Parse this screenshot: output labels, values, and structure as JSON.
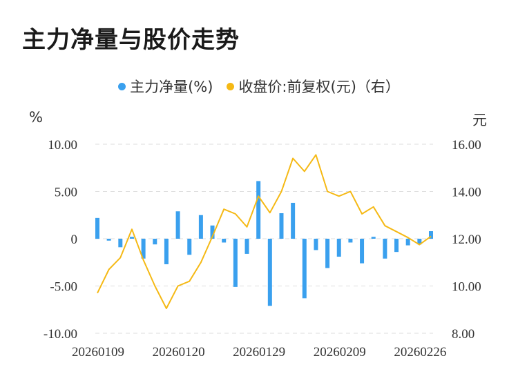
{
  "title": "主力净量与股价走势",
  "legend": {
    "series1": "主力净量(%)",
    "series2": "收盘价:前复权(元)（右）"
  },
  "colors": {
    "bar": "#3aa0ee",
    "line": "#f5b915",
    "grid": "#dddddd"
  },
  "chart_data": {
    "type": "bar+line",
    "left_unit": "%",
    "right_unit": "元",
    "left_axis": {
      "ylim": [
        -10,
        10
      ],
      "ticks": [
        10,
        5,
        0,
        -5,
        -10
      ],
      "tick_labels": [
        "10.00",
        "5.00",
        "0",
        "-5.00",
        "-10.00"
      ]
    },
    "right_axis": {
      "ylim": [
        8,
        16
      ],
      "ticks": [
        16,
        14,
        12,
        10,
        8
      ],
      "tick_labels": [
        "16.00",
        "14.00",
        "12.00",
        "10.00",
        "8.00"
      ]
    },
    "x_tick_labels": [
      "20260109",
      "20260120",
      "20260129",
      "20260209",
      "20260226"
    ],
    "x_tick_indices": [
      0,
      7,
      14,
      21,
      28
    ],
    "series": [
      {
        "name": "主力净量(%)",
        "kind": "bar",
        "values": [
          2.2,
          -0.2,
          -0.9,
          0.2,
          -2.1,
          -0.6,
          -2.7,
          2.9,
          -1.7,
          2.5,
          1.4,
          -0.4,
          -5.1,
          -1.6,
          6.1,
          -7.1,
          2.7,
          3.8,
          -6.3,
          -1.2,
          -3.1,
          -1.9,
          -0.4,
          -2.6,
          0.2,
          -2.1,
          -1.4,
          -0.7,
          -0.6,
          0.8
        ]
      },
      {
        "name": "收盘价:前复权(元)（右）",
        "kind": "line",
        "values": [
          9.7,
          10.7,
          11.2,
          12.4,
          11.1,
          10.0,
          9.05,
          10.0,
          10.2,
          11.0,
          12.1,
          13.25,
          13.05,
          12.5,
          13.8,
          13.1,
          14.0,
          15.4,
          14.85,
          15.55,
          14.0,
          13.8,
          14.0,
          13.05,
          13.35,
          12.55,
          12.3,
          12.05,
          11.75,
          12.1
        ]
      }
    ]
  }
}
